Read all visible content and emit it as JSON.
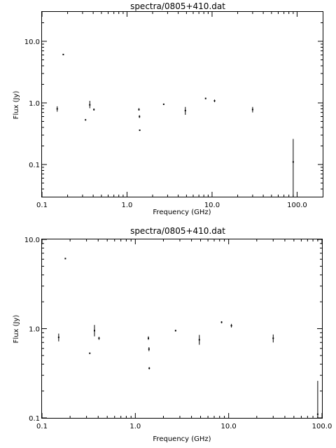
{
  "chart_data": [
    {
      "type": "scatter",
      "title": "spectra/0805+410.dat",
      "xlabel": "Frequency (GHz)",
      "ylabel": "Flux (Jy)",
      "xscale": "log",
      "yscale": "log",
      "xlim": [
        0.1,
        200
      ],
      "ylim": [
        0.03,
        30
      ],
      "xticks": [
        {
          "value": 0.1,
          "label": "0.1"
        },
        {
          "value": 1.0,
          "label": "1.0"
        },
        {
          "value": 10.0,
          "label": "10.0"
        },
        {
          "value": 100.0,
          "label": "100.0"
        }
      ],
      "yticks": [
        {
          "value": 0.1,
          "label": "0.1"
        },
        {
          "value": 1.0,
          "label": "1.0"
        },
        {
          "value": 10.0,
          "label": "10.0"
        }
      ],
      "points": [
        {
          "x": 0.151,
          "y": 0.8,
          "ylo": 0.72,
          "yhi": 0.88
        },
        {
          "x": 0.178,
          "y": 6.1,
          "ylo": 6.1,
          "yhi": 6.1
        },
        {
          "x": 0.325,
          "y": 0.53,
          "ylo": 0.53,
          "yhi": 0.53
        },
        {
          "x": 0.365,
          "y": 0.93,
          "ylo": 0.82,
          "yhi": 1.08
        },
        {
          "x": 0.408,
          "y": 0.78,
          "ylo": 0.75,
          "yhi": 0.81
        },
        {
          "x": 1.38,
          "y": 0.78,
          "ylo": 0.75,
          "yhi": 0.82
        },
        {
          "x": 1.4,
          "y": 0.6,
          "ylo": 0.57,
          "yhi": 0.63
        },
        {
          "x": 1.41,
          "y": 0.36,
          "ylo": 0.35,
          "yhi": 0.37
        },
        {
          "x": 2.7,
          "y": 0.95,
          "ylo": 0.93,
          "yhi": 0.97
        },
        {
          "x": 4.85,
          "y": 0.75,
          "ylo": 0.64,
          "yhi": 0.86
        },
        {
          "x": 8.4,
          "y": 1.18,
          "ylo": 1.15,
          "yhi": 1.21
        },
        {
          "x": 10.7,
          "y": 1.08,
          "ylo": 1.03,
          "yhi": 1.13
        },
        {
          "x": 30.0,
          "y": 0.78,
          "ylo": 0.7,
          "yhi": 0.86
        },
        {
          "x": 90.0,
          "y": 0.11,
          "ylo": 0.03,
          "yhi": 0.26
        }
      ]
    },
    {
      "type": "scatter",
      "title": "spectra/0805+410.dat",
      "xlabel": "Frequency (GHz)",
      "ylabel": "Flux (Jy)",
      "xscale": "log",
      "yscale": "log",
      "xlim": [
        0.1,
        100
      ],
      "ylim": [
        0.1,
        10
      ],
      "xticks": [
        {
          "value": 0.1,
          "label": "0.1"
        },
        {
          "value": 1.0,
          "label": "1.0"
        },
        {
          "value": 10.0,
          "label": "10.0"
        },
        {
          "value": 100.0,
          "label": "100.0"
        }
      ],
      "yticks": [
        {
          "value": 0.1,
          "label": "0.1"
        },
        {
          "value": 1.0,
          "label": "1.0"
        },
        {
          "value": 10.0,
          "label": "10.0"
        }
      ],
      "points": [
        {
          "x": 0.151,
          "y": 0.8,
          "ylo": 0.72,
          "yhi": 0.88
        },
        {
          "x": 0.178,
          "y": 6.1,
          "ylo": 6.1,
          "yhi": 6.1
        },
        {
          "x": 0.325,
          "y": 0.53,
          "ylo": 0.53,
          "yhi": 0.53
        },
        {
          "x": 0.365,
          "y": 0.95,
          "ylo": 0.82,
          "yhi": 1.1
        },
        {
          "x": 0.408,
          "y": 0.78,
          "ylo": 0.75,
          "yhi": 0.81
        },
        {
          "x": 1.38,
          "y": 0.78,
          "ylo": 0.75,
          "yhi": 0.82
        },
        {
          "x": 1.4,
          "y": 0.59,
          "ylo": 0.56,
          "yhi": 0.62
        },
        {
          "x": 1.41,
          "y": 0.36,
          "ylo": 0.35,
          "yhi": 0.37
        },
        {
          "x": 2.7,
          "y": 0.95,
          "ylo": 0.93,
          "yhi": 0.97
        },
        {
          "x": 4.85,
          "y": 0.75,
          "ylo": 0.66,
          "yhi": 0.85
        },
        {
          "x": 8.4,
          "y": 1.18,
          "ylo": 1.15,
          "yhi": 1.21
        },
        {
          "x": 10.7,
          "y": 1.08,
          "ylo": 1.03,
          "yhi": 1.13
        },
        {
          "x": 30.0,
          "y": 0.78,
          "ylo": 0.7,
          "yhi": 0.86
        },
        {
          "x": 90.0,
          "y": 0.11,
          "ylo": 0.03,
          "yhi": 0.26
        }
      ]
    }
  ]
}
